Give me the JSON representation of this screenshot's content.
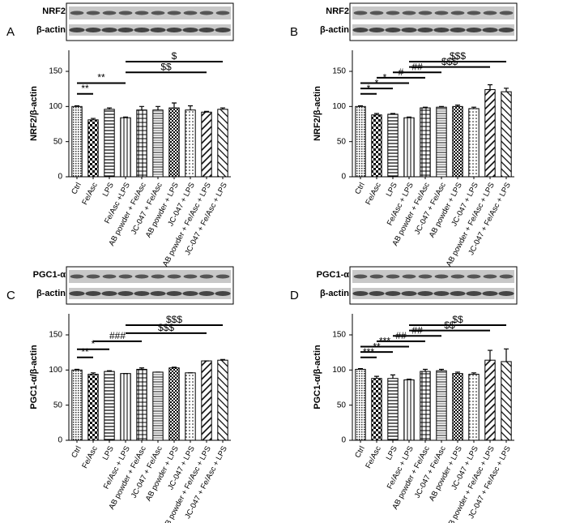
{
  "chart_data": [
    {
      "type": "bar",
      "panel": "A",
      "blot_label": "NRF2",
      "loading_label": "β-actin",
      "ylabel": "NRF2/β-actin",
      "categories": [
        "Ctrl",
        "Fe/Asc",
        "LPS",
        "Fe/Asc +LPS",
        "AB powder + Fe/Asc",
        "JC-047 + Fe/Asc",
        "AB powder + LPS",
        "JC-047 + LPS",
        "AB powder + Fe/Asc + LPS",
        "JC-047 + Fe/Asc + LPS"
      ],
      "values": [
        100,
        81,
        96,
        84,
        95,
        95,
        98,
        95,
        92,
        96
      ],
      "errors": [
        1,
        2,
        2,
        1,
        5,
        5,
        7,
        6,
        1,
        2
      ],
      "ylim": [
        0,
        180
      ],
      "yticks": [
        0,
        50,
        100,
        150
      ],
      "annotations": [
        {
          "text": "**",
          "from": "Ctrl",
          "to": "Fe/Asc"
        },
        {
          "text": "**",
          "from": "Ctrl",
          "to": "Fe/Asc +LPS"
        },
        {
          "text": "$$",
          "from": "Fe/Asc +LPS",
          "to": "AB powder + Fe/Asc + LPS"
        },
        {
          "text": "$",
          "from": "Fe/Asc +LPS",
          "to": "JC-047 + Fe/Asc + LPS"
        }
      ]
    },
    {
      "type": "bar",
      "panel": "B",
      "blot_label": "NRF2",
      "loading_label": "β-actin",
      "ylabel": "NRF2/β-actin",
      "categories": [
        "Ctrl",
        "Fe/Asc",
        "LPS",
        "Fe/Asc + LPS",
        "AB powder + Fe/Asc",
        "JC-047 + Fe/Asc",
        "AB powder + LPS",
        "JC-047 + LPS",
        "AB powder + Fe/Asc + LPS",
        "JC-047 + Fe/Asc + LPS"
      ],
      "values": [
        100,
        88,
        89,
        84,
        98,
        99,
        100,
        97,
        124,
        121
      ],
      "errors": [
        1,
        2,
        1,
        1,
        1,
        1,
        2,
        2,
        7,
        5
      ],
      "ylim": [
        0,
        180
      ],
      "yticks": [
        0,
        50,
        100,
        150
      ],
      "annotations": [
        {
          "text": "*",
          "from": "Ctrl",
          "to": "Fe/Asc"
        },
        {
          "text": "*",
          "from": "Ctrl",
          "to": "LPS"
        },
        {
          "text": "*",
          "from": "Ctrl",
          "to": "Fe/Asc + LPS"
        },
        {
          "text": "#",
          "from": "Fe/Asc",
          "to": "AB powder + Fe/Asc"
        },
        {
          "text": "##",
          "from": "LPS",
          "to": "JC-047 + Fe/Asc"
        },
        {
          "text": "$$$",
          "from": "Fe/Asc + LPS",
          "to": "AB powder + Fe/Asc + LPS"
        },
        {
          "text": "$$$",
          "from": "Fe/Asc + LPS",
          "to": "JC-047 + Fe/Asc + LPS"
        }
      ]
    },
    {
      "type": "bar",
      "panel": "C",
      "blot_label": "PGC1-α",
      "loading_label": "β-actin",
      "ylabel": "PGC1-α/β-actin",
      "categories": [
        "Ctrl",
        "Fe/Asc",
        "LPS",
        "Fe/Asc + LPS",
        "AB powder + Fe/Asc",
        "JC-047 + Fe/Asc",
        "AB powder + LPS",
        "JC-047 + LPS",
        "AB powder + Fe/Asc + LPS",
        "JC-047 + Fe/Asc + LPS"
      ],
      "values": [
        100,
        94,
        98,
        95,
        101,
        97,
        103,
        96,
        113,
        114
      ],
      "errors": [
        1,
        2,
        1,
        0,
        2,
        0,
        1,
        0,
        0,
        1
      ],
      "ylim": [
        0,
        180
      ],
      "yticks": [
        0,
        50,
        100,
        150
      ],
      "annotations": [
        {
          "text": "**",
          "from": "Ctrl",
          "to": "Fe/Asc"
        },
        {
          "text": "*",
          "from": "Ctrl",
          "to": "LPS"
        },
        {
          "text": "###",
          "from": "Fe/Asc",
          "to": "AB powder + Fe/Asc"
        },
        {
          "text": "$$$",
          "from": "Fe/Asc + LPS",
          "to": "AB powder + Fe/Asc + LPS"
        },
        {
          "text": "$$$",
          "from": "Fe/Asc + LPS",
          "to": "JC-047 + Fe/Asc + LPS"
        }
      ]
    },
    {
      "type": "bar",
      "panel": "D",
      "blot_label": "PGC1-α",
      "loading_label": "β-actin",
      "ylabel": "PGC1-α/β-actin",
      "categories": [
        "Ctrl",
        "Fe/Asc",
        "LPS",
        "Fe/Asc + LPS",
        "AB powder + Fe/Asc",
        "JC-047 + Fe/Asc",
        "AB powder + LPS",
        "JC-047 + LPS",
        "AB powder + Fe/Asc + LPS",
        "JC-047 + Fe/Asc + LPS"
      ],
      "values": [
        101,
        88,
        88,
        86,
        98,
        99,
        95,
        94,
        114,
        112
      ],
      "errors": [
        1,
        3,
        5,
        1,
        3,
        2,
        2,
        2,
        14,
        18
      ],
      "ylim": [
        0,
        180
      ],
      "yticks": [
        0,
        50,
        100,
        150
      ],
      "annotations": [
        {
          "text": "***",
          "from": "Ctrl",
          "to": "Fe/Asc"
        },
        {
          "text": "**",
          "from": "Ctrl",
          "to": "LPS"
        },
        {
          "text": "***",
          "from": "Ctrl",
          "to": "Fe/Asc + LPS"
        },
        {
          "text": "##",
          "from": "Fe/Asc",
          "to": "AB powder + Fe/Asc"
        },
        {
          "text": "##",
          "from": "LPS",
          "to": "JC-047 + Fe/Asc"
        },
        {
          "text": "$$",
          "from": "Fe/Asc + LPS",
          "to": "AB powder + Fe/Asc + LPS"
        },
        {
          "text": "$$",
          "from": "Fe/Asc + LPS",
          "to": "JC-047 + Fe/Asc + LPS"
        }
      ]
    }
  ]
}
